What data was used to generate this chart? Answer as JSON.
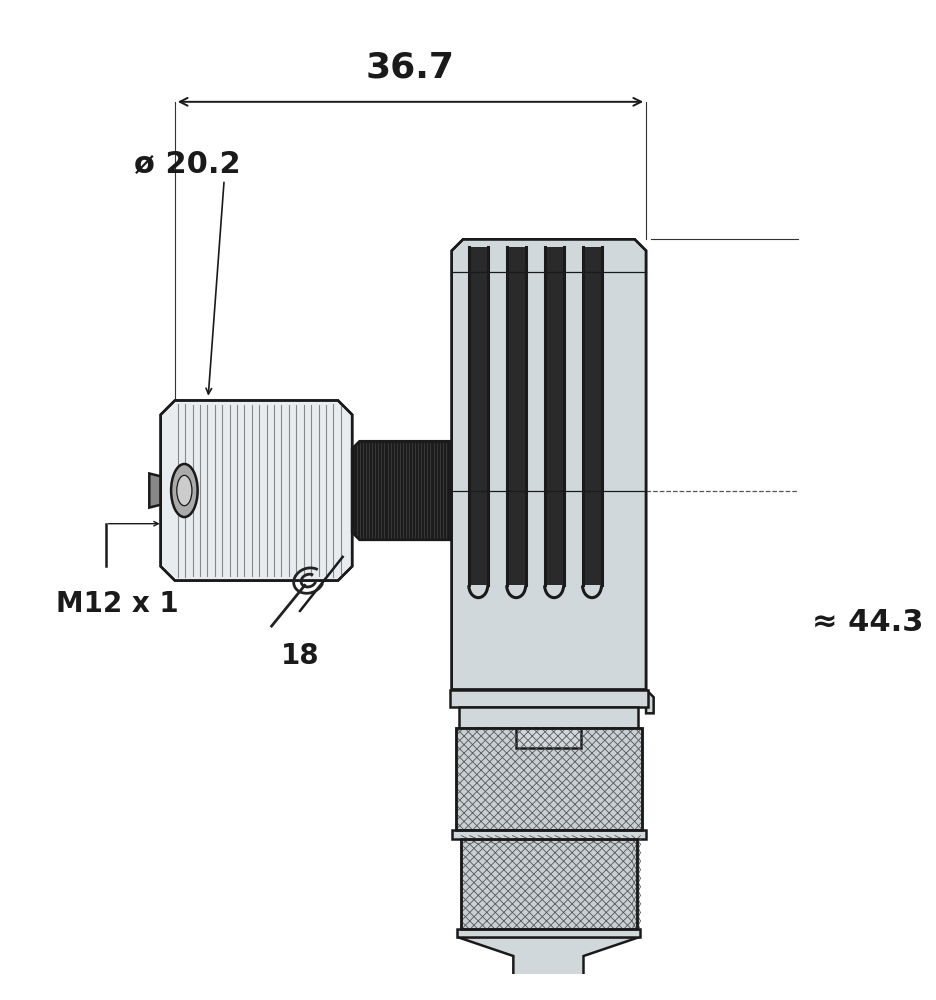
{
  "bg_color": "#ffffff",
  "lc": "#1a1a1a",
  "fill_gray": "#d0d8dc",
  "fill_dark": "#1a1a1a",
  "fill_knurl": "#c8d0d4",
  "lw_main": 1.8,
  "lw_thin": 0.9,
  "lw_dim": 1.4,
  "dim_36_7": "36.7",
  "dim_20_2": "ø 20.2",
  "dim_44_3": "≈ 44.3",
  "label_m12": "M12 x 1",
  "label_18": "18",
  "figsize": [
    9.37,
    10.0
  ],
  "dpi": 100
}
